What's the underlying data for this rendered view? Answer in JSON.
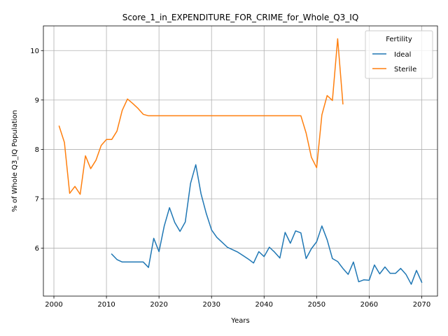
{
  "chart_data": {
    "type": "line",
    "title": "Score_1_in_EXPENDITURE_FOR_CRIME_for_Whole_Q3_IQ",
    "xlabel": "Years",
    "ylabel": "% of Whole Q3_IQ Population",
    "xlim": [
      1998,
      2073
    ],
    "ylim": [
      5.03,
      10.5
    ],
    "xticks": [
      2000,
      2010,
      2020,
      2030,
      2040,
      2050,
      2060,
      2070
    ],
    "yticks": [
      6,
      7,
      8,
      9,
      10
    ],
    "grid": true,
    "legend": {
      "title": "Fertility",
      "placement": "top-right"
    },
    "series": [
      {
        "name": "Ideal",
        "color": "#1f77b4",
        "x": [
          2011,
          2012,
          2013,
          2014,
          2015,
          2016,
          2017,
          2018,
          2019,
          2020,
          2021,
          2022,
          2023,
          2024,
          2025,
          2026,
          2027,
          2028,
          2029,
          2030,
          2031,
          2032,
          2033,
          2034,
          2035,
          2036,
          2037,
          2038,
          2039,
          2040,
          2041,
          2042,
          2043,
          2044,
          2045,
          2046,
          2047,
          2048,
          2049,
          2050,
          2051,
          2052,
          2053,
          2054,
          2055,
          2056,
          2057,
          2058,
          2059,
          2060,
          2061,
          2062,
          2063,
          2064,
          2065,
          2066,
          2067,
          2068,
          2069,
          2070
        ],
        "y": [
          5.88,
          5.77,
          5.72,
          5.72,
          5.72,
          5.72,
          5.72,
          5.61,
          6.2,
          5.93,
          6.45,
          6.82,
          6.52,
          6.34,
          6.53,
          7.31,
          7.69,
          7.1,
          6.7,
          6.37,
          6.22,
          6.12,
          6.02,
          5.97,
          5.92,
          5.85,
          5.78,
          5.7,
          5.93,
          5.83,
          6.02,
          5.92,
          5.8,
          6.32,
          6.1,
          6.35,
          6.31,
          5.79,
          5.99,
          6.13,
          6.45,
          6.17,
          5.79,
          5.73,
          5.59,
          5.47,
          5.72,
          5.32,
          5.36,
          5.35,
          5.66,
          5.48,
          5.62,
          5.49,
          5.49,
          5.59,
          5.47,
          5.27,
          5.55,
          5.31
        ]
      },
      {
        "name": "Sterile",
        "color": "#ff7f0e",
        "x": [
          2001,
          2002,
          2003,
          2004,
          2005,
          2006,
          2007,
          2008,
          2009,
          2010,
          2011,
          2012,
          2013,
          2014,
          2015,
          2016,
          2017,
          2018,
          2019,
          2020,
          2025,
          2030,
          2035,
          2040,
          2045,
          2047,
          2048,
          2049,
          2050,
          2051,
          2052,
          2053,
          2054,
          2055
        ],
        "y": [
          8.47,
          8.14,
          7.11,
          7.25,
          7.09,
          7.87,
          7.61,
          7.78,
          8.08,
          8.2,
          8.2,
          8.37,
          8.79,
          9.02,
          8.93,
          8.83,
          8.71,
          8.68,
          8.68,
          8.68,
          8.68,
          8.68,
          8.68,
          8.68,
          8.68,
          8.68,
          8.33,
          7.84,
          7.63,
          8.7,
          9.09,
          8.99,
          10.24,
          8.92
        ]
      }
    ]
  }
}
